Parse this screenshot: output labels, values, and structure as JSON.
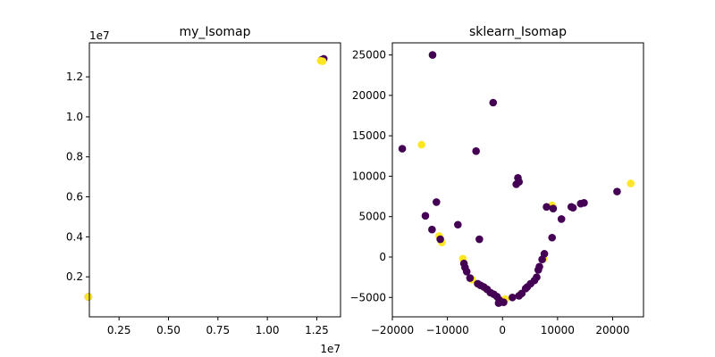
{
  "colors": {
    "class_0": "#440154",
    "class_1": "#fde725"
  },
  "chart_data": [
    {
      "type": "scatter",
      "title": "my_Isomap",
      "xlabel": "",
      "ylabel": "",
      "grid": false,
      "x_scale_label": "1e7",
      "y_scale_label": "1e7",
      "xlim": [
        1000000,
        13700000
      ],
      "ylim": [
        0,
        13700000
      ],
      "xticks": [
        2500000,
        5000000,
        7500000,
        10000000,
        12500000
      ],
      "xtick_labels": [
        "0.25",
        "0.50",
        "0.75",
        "1.00",
        "1.25"
      ],
      "yticks": [
        2000000,
        4000000,
        6000000,
        8000000,
        10000000,
        12000000
      ],
      "ytick_labels": [
        "0.2",
        "0.4",
        "0.6",
        "0.8",
        "1.0",
        "1.2"
      ],
      "points": [
        {
          "x": 950000,
          "y": 1000000,
          "c": 0
        },
        {
          "x": 950000,
          "y": 1000000,
          "c": 1
        },
        {
          "x": 12750000,
          "y": 12850000,
          "c": 0
        },
        {
          "x": 12850000,
          "y": 12900000,
          "c": 0
        },
        {
          "x": 12700000,
          "y": 12800000,
          "c": 1
        },
        {
          "x": 12800000,
          "y": 12780000,
          "c": 1
        }
      ]
    },
    {
      "type": "scatter",
      "title": "sklearn_Isomap",
      "xlabel": "",
      "ylabel": "",
      "grid": false,
      "xlim": [
        -20000,
        25600
      ],
      "ylim": [
        -7400,
        26500
      ],
      "xticks": [
        -20000,
        -10000,
        0,
        10000,
        20000
      ],
      "xtick_labels": [
        "−20000",
        "−10000",
        "0",
        "10000",
        "20000"
      ],
      "yticks": [
        -5000,
        0,
        5000,
        10000,
        15000,
        20000,
        25000
      ],
      "ytick_labels": [
        "−5000",
        "0",
        "5000",
        "10000",
        "15000",
        "20000",
        "25000"
      ],
      "points": [
        {
          "x": -14700,
          "y": 13900,
          "c": 1
        },
        {
          "x": 23300,
          "y": 9100,
          "c": 1
        },
        {
          "x": 9000,
          "y": 6400,
          "c": 1
        },
        {
          "x": -11500,
          "y": 2600,
          "c": 1
        },
        {
          "x": -11000,
          "y": 1800,
          "c": 1
        },
        {
          "x": -7200,
          "y": -200,
          "c": 1
        },
        {
          "x": 7500,
          "y": -200,
          "c": 1
        },
        {
          "x": -5500,
          "y": -2800,
          "c": 1
        },
        {
          "x": -3000,
          "y": -3900,
          "c": 1
        },
        {
          "x": -500,
          "y": -5500,
          "c": 1
        },
        {
          "x": 500,
          "y": -5200,
          "c": 1
        },
        {
          "x": 3300,
          "y": -4600,
          "c": 1
        },
        {
          "x": -12700,
          "y": 25000,
          "c": 0
        },
        {
          "x": -1700,
          "y": 19100,
          "c": 0
        },
        {
          "x": -18200,
          "y": 13400,
          "c": 0
        },
        {
          "x": -4800,
          "y": 13100,
          "c": 0
        },
        {
          "x": 2800,
          "y": 9800,
          "c": 0
        },
        {
          "x": 2500,
          "y": 9000,
          "c": 0
        },
        {
          "x": 3000,
          "y": 9300,
          "c": 0
        },
        {
          "x": -12000,
          "y": 6800,
          "c": 0
        },
        {
          "x": 8000,
          "y": 6200,
          "c": 0
        },
        {
          "x": 9200,
          "y": 6000,
          "c": 0
        },
        {
          "x": 12500,
          "y": 6200,
          "c": 0
        },
        {
          "x": 12800,
          "y": 6100,
          "c": 0
        },
        {
          "x": 14200,
          "y": 6600,
          "c": 0
        },
        {
          "x": 14800,
          "y": 6700,
          "c": 0
        },
        {
          "x": 20800,
          "y": 8100,
          "c": 0
        },
        {
          "x": -14000,
          "y": 5100,
          "c": 0
        },
        {
          "x": 10700,
          "y": 4700,
          "c": 0
        },
        {
          "x": -8100,
          "y": 4000,
          "c": 0
        },
        {
          "x": -12800,
          "y": 3400,
          "c": 0
        },
        {
          "x": -11300,
          "y": 2200,
          "c": 0
        },
        {
          "x": -4200,
          "y": 2200,
          "c": 0
        },
        {
          "x": 9000,
          "y": 2400,
          "c": 0
        },
        {
          "x": 7600,
          "y": 400,
          "c": 0
        },
        {
          "x": -7000,
          "y": -800,
          "c": 0
        },
        {
          "x": 7200,
          "y": -300,
          "c": 0
        },
        {
          "x": -6800,
          "y": -1300,
          "c": 0
        },
        {
          "x": 6700,
          "y": -1200,
          "c": 0
        },
        {
          "x": -6500,
          "y": -1800,
          "c": 0
        },
        {
          "x": 6500,
          "y": -1600,
          "c": 0
        },
        {
          "x": -5900,
          "y": -2600,
          "c": 0
        },
        {
          "x": 6200,
          "y": -2500,
          "c": 0
        },
        {
          "x": 5800,
          "y": -2900,
          "c": 0
        },
        {
          "x": -4500,
          "y": -3300,
          "c": 0
        },
        {
          "x": 5100,
          "y": -3300,
          "c": 0
        },
        {
          "x": -4000,
          "y": -3500,
          "c": 0
        },
        {
          "x": 4500,
          "y": -3700,
          "c": 0
        },
        {
          "x": -3400,
          "y": -3700,
          "c": 0
        },
        {
          "x": 4200,
          "y": -3900,
          "c": 0
        },
        {
          "x": -2800,
          "y": -4000,
          "c": 0
        },
        {
          "x": 3500,
          "y": -4500,
          "c": 0
        },
        {
          "x": -2200,
          "y": -4400,
          "c": 0
        },
        {
          "x": 3000,
          "y": -4800,
          "c": 0
        },
        {
          "x": -1600,
          "y": -4600,
          "c": 0
        },
        {
          "x": -1000,
          "y": -4900,
          "c": 0
        },
        {
          "x": 1800,
          "y": -5000,
          "c": 0
        },
        {
          "x": -600,
          "y": -5300,
          "c": 0
        },
        {
          "x": -700,
          "y": -5700,
          "c": 0
        },
        {
          "x": 200,
          "y": -5600,
          "c": 0
        }
      ]
    }
  ]
}
